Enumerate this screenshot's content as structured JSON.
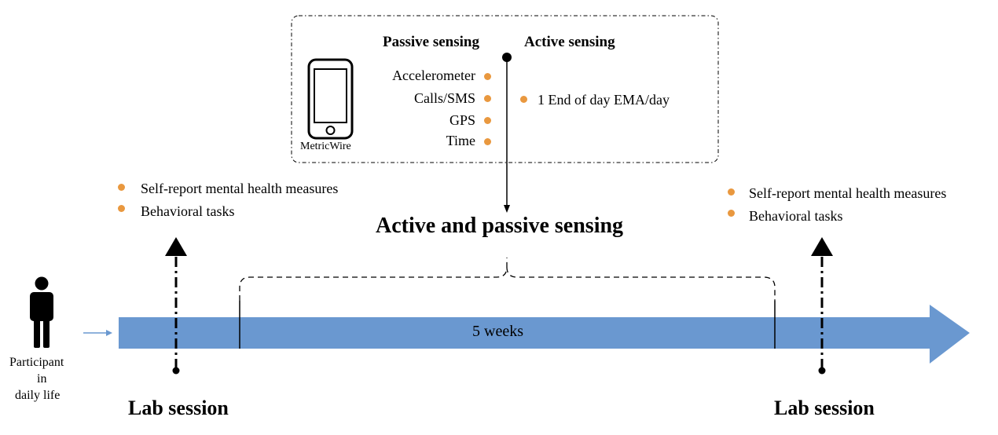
{
  "colors": {
    "arrow_fill": "#6a98d0",
    "bullet": "#e9983f",
    "line": "#000000"
  },
  "sensing_box": {
    "phone_label": "MetricWire",
    "phone_icon": "smartphone-icon",
    "passive_heading": "Passive sensing",
    "active_heading": "Active sensing",
    "passive_items": [
      "Accelerometer",
      "Calls/SMS",
      "GPS",
      "Time"
    ],
    "active_items": [
      "1 End of day EMA/day"
    ]
  },
  "center_title": "Active and passive sensing",
  "timeline": {
    "duration_label": "5 weeks"
  },
  "participant": {
    "icon": "person-icon",
    "label_lines": [
      "Participant",
      "in",
      "daily life"
    ]
  },
  "left_session": {
    "title": "Lab session",
    "items": [
      "Self-report mental health measures",
      "Behavioral tasks"
    ]
  },
  "right_session": {
    "title": "Lab session",
    "items": [
      "Self-report mental health measures",
      "Behavioral tasks"
    ]
  }
}
